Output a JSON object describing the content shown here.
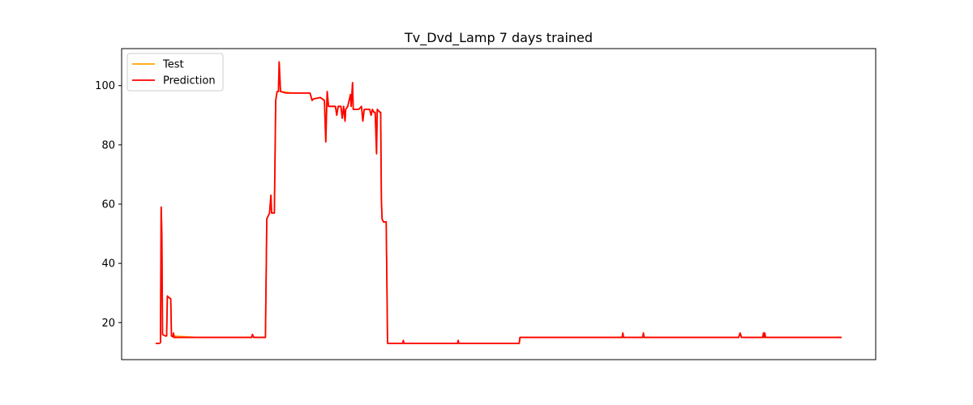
{
  "chart_data": {
    "type": "line",
    "title": "Tv_Dvd_Lamp 7 days trained",
    "xlabel": "",
    "ylabel": "",
    "xlim": [
      0,
      1000
    ],
    "ylim": [
      7.5,
      112.5
    ],
    "yticks": [
      20,
      40,
      60,
      80,
      100
    ],
    "ytick_labels": [
      "20",
      "40",
      "60",
      "80",
      "100"
    ],
    "grid": false,
    "legend_position": "upper-left",
    "series": [
      {
        "name": "Test",
        "color": "#ffa500",
        "points": [
          [
            0,
            13
          ],
          [
            5,
            13
          ],
          [
            7,
            13.2
          ],
          [
            8,
            59
          ],
          [
            9,
            50
          ],
          [
            10,
            16
          ],
          [
            14,
            15.5
          ],
          [
            16,
            15.5
          ],
          [
            17,
            29
          ],
          [
            19,
            28.5
          ],
          [
            22,
            28
          ],
          [
            23,
            15.5
          ],
          [
            60,
            15
          ],
          [
            140,
            15
          ],
          [
            141,
            16
          ],
          [
            143,
            15
          ],
          [
            160,
            15
          ],
          [
            162,
            55
          ],
          [
            164,
            56
          ],
          [
            166,
            57
          ],
          [
            168,
            63
          ],
          [
            169,
            57
          ],
          [
            171,
            57
          ],
          [
            173,
            57
          ],
          [
            175,
            95
          ],
          [
            177,
            98
          ],
          [
            179,
            98
          ],
          [
            180,
            108
          ],
          [
            182,
            98
          ],
          [
            200,
            97.5
          ],
          [
            225,
            97.5
          ],
          [
            228,
            95
          ],
          [
            230,
            95.5
          ],
          [
            240,
            96
          ],
          [
            246,
            95
          ],
          [
            248,
            81
          ],
          [
            249,
            90
          ],
          [
            250,
            98
          ],
          [
            252,
            93
          ],
          [
            262,
            93
          ],
          [
            264,
            90
          ],
          [
            266,
            93
          ],
          [
            270,
            93
          ],
          [
            272,
            89
          ],
          [
            274,
            93
          ],
          [
            276,
            88
          ],
          [
            277,
            92
          ],
          [
            280,
            93
          ],
          [
            284,
            97
          ],
          [
            285,
            93
          ],
          [
            287,
            101
          ],
          [
            288,
            92
          ],
          [
            296,
            92
          ],
          [
            300,
            93
          ],
          [
            302,
            88
          ],
          [
            304,
            92
          ],
          [
            312,
            92
          ],
          [
            314,
            90
          ],
          [
            316,
            92
          ],
          [
            318,
            91
          ],
          [
            320,
            91
          ],
          [
            322,
            77
          ],
          [
            323,
            92
          ],
          [
            327,
            91
          ],
          [
            328,
            91
          ],
          [
            329,
            62
          ],
          [
            330,
            55
          ],
          [
            332,
            54
          ],
          [
            334,
            54
          ],
          [
            336,
            54
          ],
          [
            337,
            35
          ],
          [
            338,
            13
          ],
          [
            400,
            13
          ],
          [
            420,
            13
          ],
          [
            480,
            13
          ],
          [
            530,
            13
          ],
          [
            531,
            15
          ],
          [
            680,
            15
          ],
          [
            681,
            16.5
          ],
          [
            682,
            15
          ],
          [
            710,
            15
          ],
          [
            711,
            16.5
          ],
          [
            712,
            15
          ],
          [
            850,
            15
          ],
          [
            852,
            16.5
          ],
          [
            854,
            15
          ],
          [
            885,
            15
          ],
          [
            886,
            16.5
          ],
          [
            887,
            15
          ],
          [
            888,
            16.5
          ],
          [
            889,
            15
          ],
          [
            1000,
            15
          ]
        ]
      },
      {
        "name": "Prediction",
        "color": "#ff0000",
        "points": [
          [
            0,
            13
          ],
          [
            5,
            13
          ],
          [
            7,
            13.2
          ],
          [
            8,
            59
          ],
          [
            9,
            50
          ],
          [
            10,
            16
          ],
          [
            14,
            15.5
          ],
          [
            16,
            15.5
          ],
          [
            17,
            29
          ],
          [
            19,
            28.5
          ],
          [
            22,
            28
          ],
          [
            23,
            15.5
          ],
          [
            25,
            15.2
          ],
          [
            26,
            16.5
          ],
          [
            27,
            15
          ],
          [
            60,
            15
          ],
          [
            100,
            15
          ],
          [
            140,
            15
          ],
          [
            141,
            16
          ],
          [
            143,
            15
          ],
          [
            160,
            15
          ],
          [
            162,
            55
          ],
          [
            164,
            56
          ],
          [
            166,
            57
          ],
          [
            168,
            63
          ],
          [
            169,
            57
          ],
          [
            171,
            57
          ],
          [
            173,
            57
          ],
          [
            175,
            95
          ],
          [
            177,
            98
          ],
          [
            179,
            98
          ],
          [
            180,
            108
          ],
          [
            182,
            98
          ],
          [
            190,
            97.5
          ],
          [
            200,
            97.5
          ],
          [
            210,
            97.5
          ],
          [
            225,
            97.5
          ],
          [
            228,
            95
          ],
          [
            230,
            95.5
          ],
          [
            240,
            96
          ],
          [
            246,
            95
          ],
          [
            248,
            81
          ],
          [
            249,
            90
          ],
          [
            250,
            98
          ],
          [
            252,
            93
          ],
          [
            262,
            93
          ],
          [
            264,
            90
          ],
          [
            266,
            93
          ],
          [
            270,
            93
          ],
          [
            272,
            89
          ],
          [
            274,
            93
          ],
          [
            276,
            88
          ],
          [
            277,
            92
          ],
          [
            280,
            93
          ],
          [
            284,
            97
          ],
          [
            285,
            93
          ],
          [
            287,
            101
          ],
          [
            288,
            92
          ],
          [
            296,
            92
          ],
          [
            300,
            93
          ],
          [
            302,
            88
          ],
          [
            304,
            92
          ],
          [
            312,
            92
          ],
          [
            314,
            90
          ],
          [
            316,
            92
          ],
          [
            318,
            91
          ],
          [
            320,
            91
          ],
          [
            322,
            77
          ],
          [
            323,
            92
          ],
          [
            327,
            91
          ],
          [
            328,
            91
          ],
          [
            329,
            62
          ],
          [
            330,
            55
          ],
          [
            332,
            54
          ],
          [
            334,
            54
          ],
          [
            336,
            54
          ],
          [
            337,
            35
          ],
          [
            338,
            13
          ],
          [
            360,
            13
          ],
          [
            361,
            14
          ],
          [
            362,
            13
          ],
          [
            400,
            13
          ],
          [
            440,
            13
          ],
          [
            441,
            14
          ],
          [
            442,
            13
          ],
          [
            480,
            13
          ],
          [
            530,
            13
          ],
          [
            531,
            15
          ],
          [
            600,
            15
          ],
          [
            680,
            15
          ],
          [
            681,
            16.5
          ],
          [
            682,
            15
          ],
          [
            710,
            15
          ],
          [
            711,
            16.5
          ],
          [
            712,
            15
          ],
          [
            800,
            15
          ],
          [
            850,
            15
          ],
          [
            852,
            16.5
          ],
          [
            854,
            15
          ],
          [
            885,
            15
          ],
          [
            886,
            16.5
          ],
          [
            887,
            15
          ],
          [
            888,
            16.5
          ],
          [
            889,
            15
          ],
          [
            950,
            15
          ],
          [
            1000,
            15
          ]
        ]
      }
    ]
  }
}
